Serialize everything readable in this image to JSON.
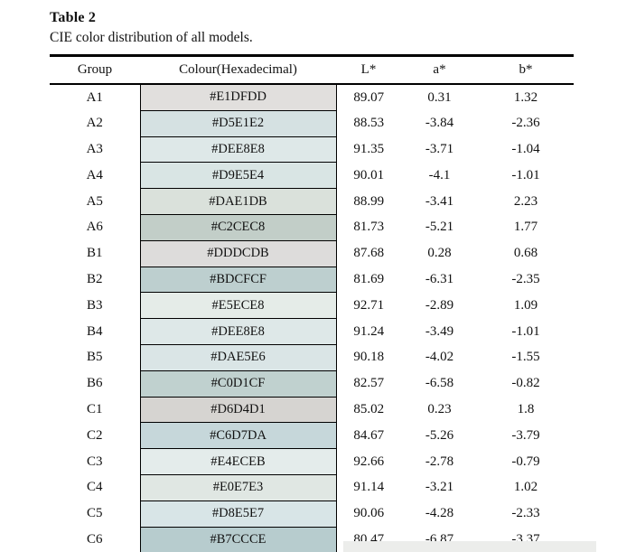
{
  "doc": {
    "title": "Table 2",
    "caption": "CIE color distribution of all models.",
    "ink_color": "#111111",
    "page_background": "#ffffff"
  },
  "table": {
    "headers": {
      "group": "Group",
      "colour": "Colour(Hexadecimal)",
      "l": "L*",
      "a": "a*",
      "b": "b*"
    },
    "rows": [
      {
        "group": "A1",
        "hex": "#E1DFDD",
        "l": "89.07",
        "a": "0.31",
        "b": "1.32"
      },
      {
        "group": "A2",
        "hex": "#D5E1E2",
        "l": "88.53",
        "a": "-3.84",
        "b": "-2.36"
      },
      {
        "group": "A3",
        "hex": "#DEE8E8",
        "l": "91.35",
        "a": "-3.71",
        "b": "-1.04"
      },
      {
        "group": "A4",
        "hex": "#D9E5E4",
        "l": "90.01",
        "a": "-4.1",
        "b": "-1.01"
      },
      {
        "group": "A5",
        "hex": "#DAE1DB",
        "l": "88.99",
        "a": "-3.41",
        "b": "2.23"
      },
      {
        "group": "A6",
        "hex": "#C2CEC8",
        "l": "81.73",
        "a": "-5.21",
        "b": "1.77"
      },
      {
        "group": "B1",
        "hex": "#DDDCDB",
        "l": "87.68",
        "a": "0.28",
        "b": "0.68"
      },
      {
        "group": "B2",
        "hex": "#BDCFCF",
        "l": "81.69",
        "a": "-6.31",
        "b": "-2.35"
      },
      {
        "group": "B3",
        "hex": "#E5ECE8",
        "l": "92.71",
        "a": "-2.89",
        "b": "1.09"
      },
      {
        "group": "B4",
        "hex": "#DEE8E8",
        "l": "91.24",
        "a": "-3.49",
        "b": "-1.01"
      },
      {
        "group": "B5",
        "hex": "#DAE5E6",
        "l": "90.18",
        "a": "-4.02",
        "b": "-1.55"
      },
      {
        "group": "B6",
        "hex": "#C0D1CF",
        "l": "82.57",
        "a": "-6.58",
        "b": "-0.82"
      },
      {
        "group": "C1",
        "hex": "#D6D4D1",
        "l": "85.02",
        "a": "0.23",
        "b": "1.8"
      },
      {
        "group": "C2",
        "hex": "#C6D7DA",
        "l": "84.67",
        "a": "-5.26",
        "b": "-3.79"
      },
      {
        "group": "C3",
        "hex": "#E4ECEB",
        "l": "92.66",
        "a": "-2.78",
        "b": "-0.79"
      },
      {
        "group": "C4",
        "hex": "#E0E7E3",
        "l": "91.14",
        "a": "-3.21",
        "b": "1.02"
      },
      {
        "group": "C5",
        "hex": "#D8E5E7",
        "l": "90.06",
        "a": "-4.28",
        "b": "-2.33"
      },
      {
        "group": "C6",
        "hex": "#B7CCCE",
        "l": "80.47",
        "a": "-6.87",
        "b": "-3.37"
      }
    ]
  },
  "chart_data": {
    "type": "table",
    "title": "Table 2 — CIE color distribution of all models.",
    "columns": [
      "Group",
      "Colour(Hexadecimal)",
      "L*",
      "a*",
      "b*"
    ],
    "rows": [
      [
        "A1",
        "#E1DFDD",
        89.07,
        0.31,
        1.32
      ],
      [
        "A2",
        "#D5E1E2",
        88.53,
        -3.84,
        -2.36
      ],
      [
        "A3",
        "#DEE8E8",
        91.35,
        -3.71,
        -1.04
      ],
      [
        "A4",
        "#D9E5E4",
        90.01,
        -4.1,
        -1.01
      ],
      [
        "A5",
        "#DAE1DB",
        88.99,
        -3.41,
        2.23
      ],
      [
        "A6",
        "#C2CEC8",
        81.73,
        -5.21,
        1.77
      ],
      [
        "B1",
        "#DDDCDB",
        87.68,
        0.28,
        0.68
      ],
      [
        "B2",
        "#BDCFCF",
        81.69,
        -6.31,
        -2.35
      ],
      [
        "B3",
        "#E5ECE8",
        92.71,
        -2.89,
        1.09
      ],
      [
        "B4",
        "#DEE8E8",
        91.24,
        -3.49,
        -1.01
      ],
      [
        "B5",
        "#DAE5E6",
        90.18,
        -4.02,
        -1.55
      ],
      [
        "B6",
        "#C0D1CF",
        82.57,
        -6.58,
        -0.82
      ],
      [
        "C1",
        "#D6D4D1",
        85.02,
        0.23,
        1.8
      ],
      [
        "C2",
        "#C6D7DA",
        84.67,
        -5.26,
        -3.79
      ],
      [
        "C3",
        "#E4ECEB",
        92.66,
        -2.78,
        -0.79
      ],
      [
        "C4",
        "#E0E7E3",
        91.14,
        -3.21,
        1.02
      ],
      [
        "C5",
        "#D8E5E7",
        90.06,
        -4.28,
        -2.33
      ],
      [
        "C6",
        "#B7CCCE",
        80.47,
        -6.87,
        -3.37
      ]
    ]
  }
}
